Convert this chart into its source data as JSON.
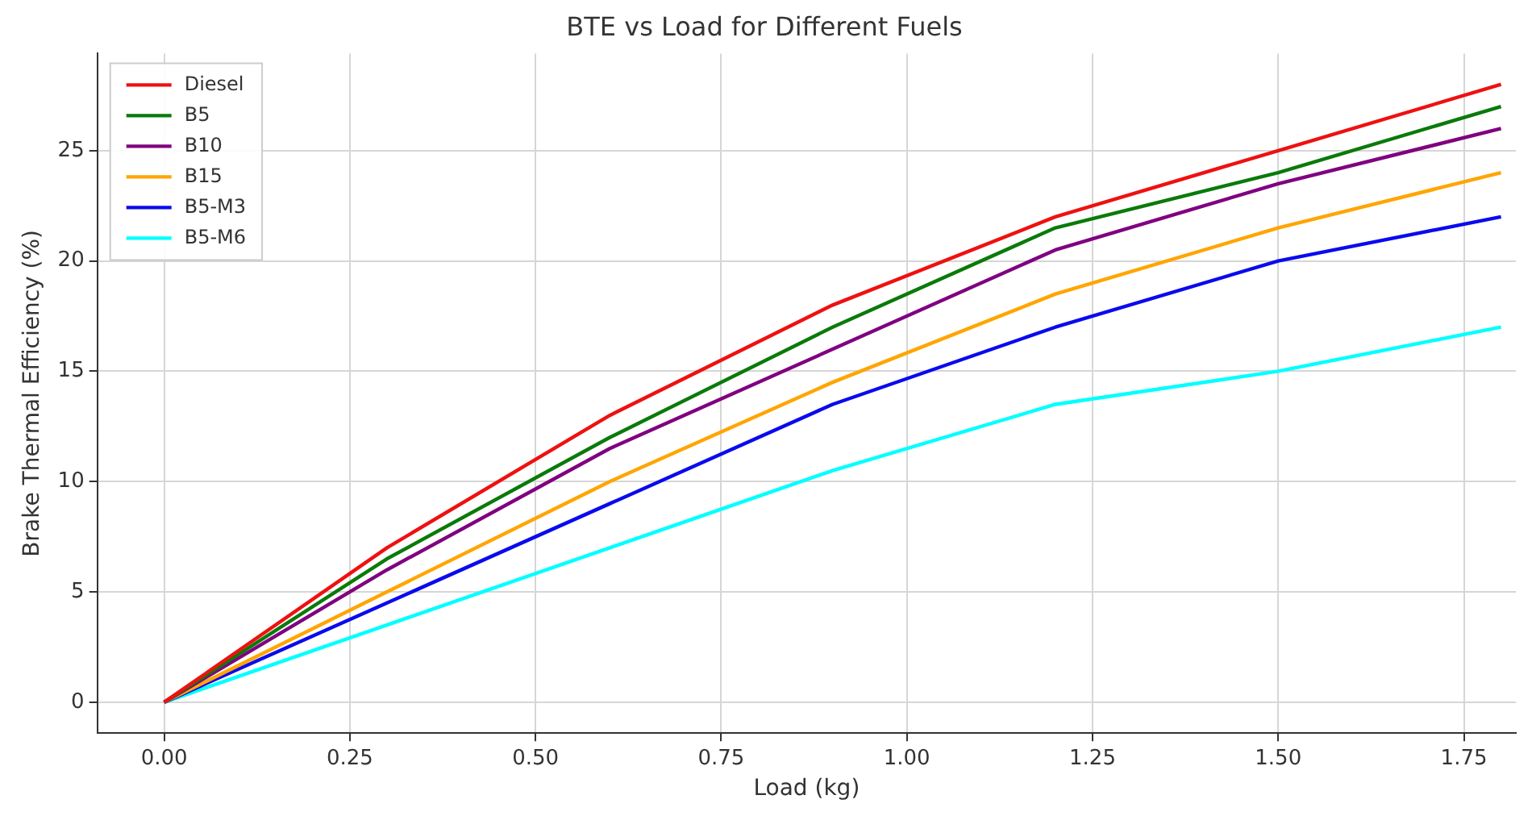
{
  "chart_data": {
    "type": "line",
    "title": "BTE vs Load for Different Fuels",
    "xlabel": "Load (kg)",
    "ylabel": "Brake Thermal Efficiency (%)",
    "x": [
      0,
      0.3,
      0.6,
      0.9,
      1.2,
      1.5,
      1.8
    ],
    "series": [
      {
        "name": "Diesel",
        "color": "#ee1111",
        "values": [
          0,
          7,
          13,
          18,
          22,
          25,
          28
        ]
      },
      {
        "name": "B5",
        "color": "#0a7a0a",
        "values": [
          0,
          6.5,
          12,
          17,
          21.5,
          24,
          27
        ]
      },
      {
        "name": "B10",
        "color": "#800080",
        "values": [
          0,
          6,
          11.5,
          16,
          20.5,
          23.5,
          26
        ]
      },
      {
        "name": "B15",
        "color": "#ffa500",
        "values": [
          0,
          5,
          10,
          14.5,
          18.5,
          21.5,
          24
        ]
      },
      {
        "name": "B5-M3",
        "color": "#0a0aee",
        "values": [
          0,
          4.5,
          9,
          13.5,
          17,
          20,
          22
        ]
      },
      {
        "name": "B5-M6",
        "color": "#00ffff",
        "values": [
          0,
          3.5,
          7,
          10.5,
          13.5,
          15,
          17
        ]
      }
    ],
    "xlim": [
      -0.09,
      1.82
    ],
    "xticks": [
      {
        "value": 0,
        "label": "0.00"
      },
      {
        "value": 0.25,
        "label": "0.25"
      },
      {
        "value": 0.5,
        "label": "0.50"
      },
      {
        "value": 0.75,
        "label": "0.75"
      },
      {
        "value": 1,
        "label": "1.00"
      },
      {
        "value": 1.25,
        "label": "1.25"
      },
      {
        "value": 1.5,
        "label": "1.50"
      },
      {
        "value": 1.75,
        "label": "1.75"
      }
    ],
    "ylim": [
      -1.4,
      29.4
    ],
    "yticks": [
      0,
      5,
      10,
      15,
      20,
      25
    ],
    "grid": true,
    "legend": "top left",
    "marker": "none",
    "line_style": "solid"
  }
}
